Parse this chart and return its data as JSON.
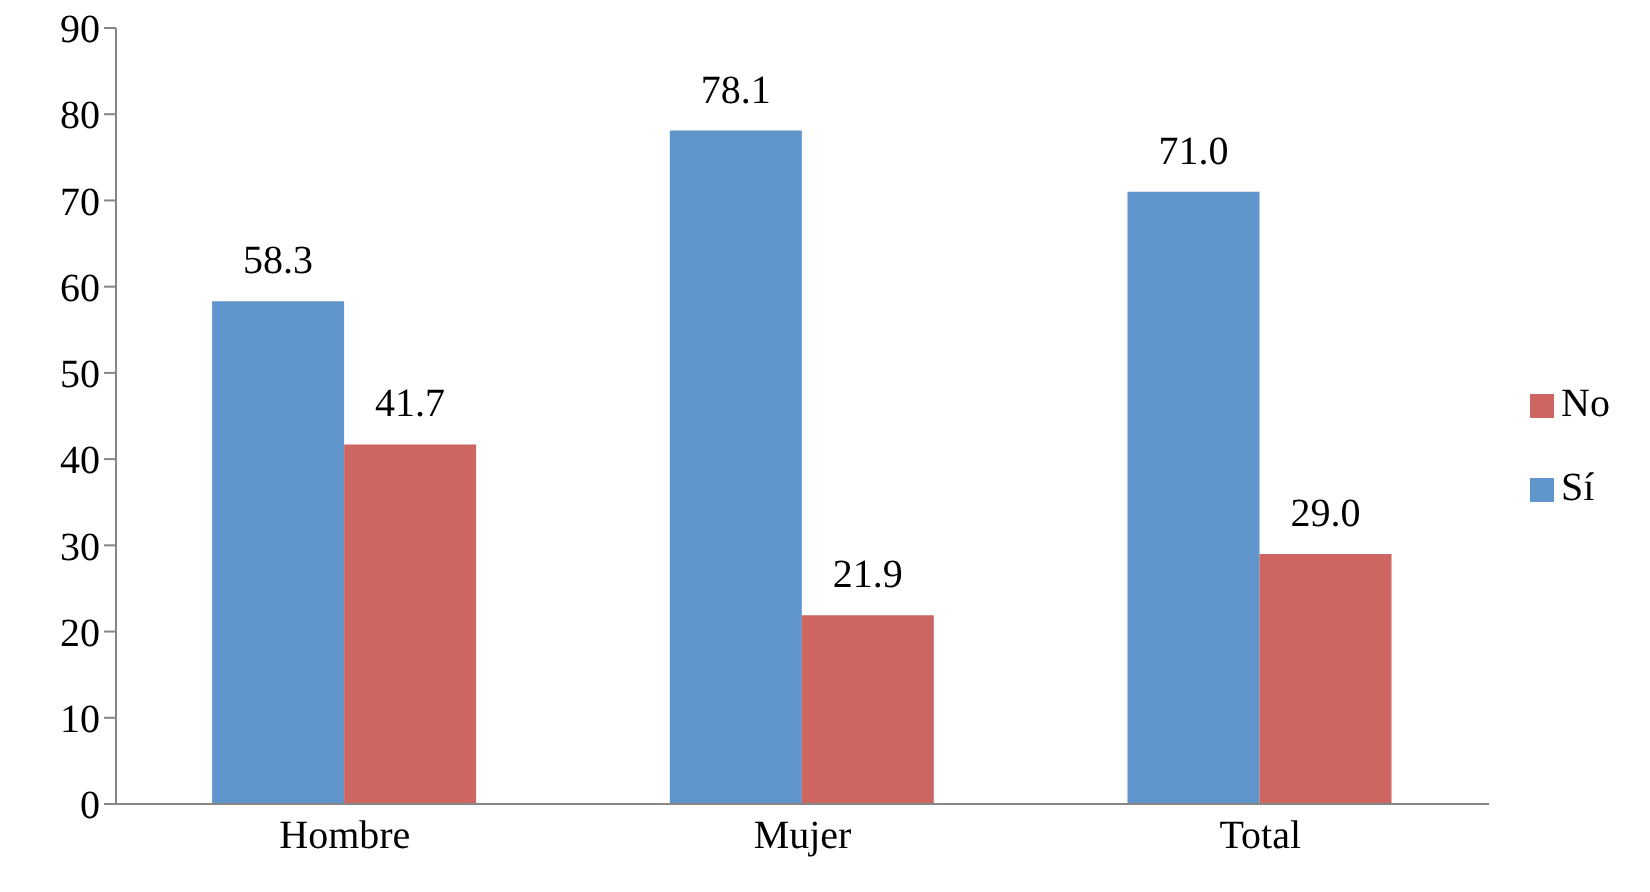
{
  "chart_data": {
    "type": "bar",
    "categories": [
      "Hombre",
      "Mujer",
      "Total"
    ],
    "series": [
      {
        "name": "Sí",
        "color": "#6095cb",
        "values": [
          58.3,
          78.1,
          71.0
        ],
        "value_labels": [
          "58.3",
          "78.1",
          "71.0"
        ]
      },
      {
        "name": "No",
        "color": "#cd6660",
        "values": [
          41.7,
          21.9,
          29.0
        ],
        "value_labels": [
          "41.7",
          "21.9",
          "29.0"
        ]
      }
    ],
    "ylim": [
      0,
      90
    ],
    "yticks": [
      0,
      10,
      20,
      30,
      40,
      50,
      60,
      70,
      80,
      90
    ],
    "grid": false,
    "legend": "right"
  }
}
